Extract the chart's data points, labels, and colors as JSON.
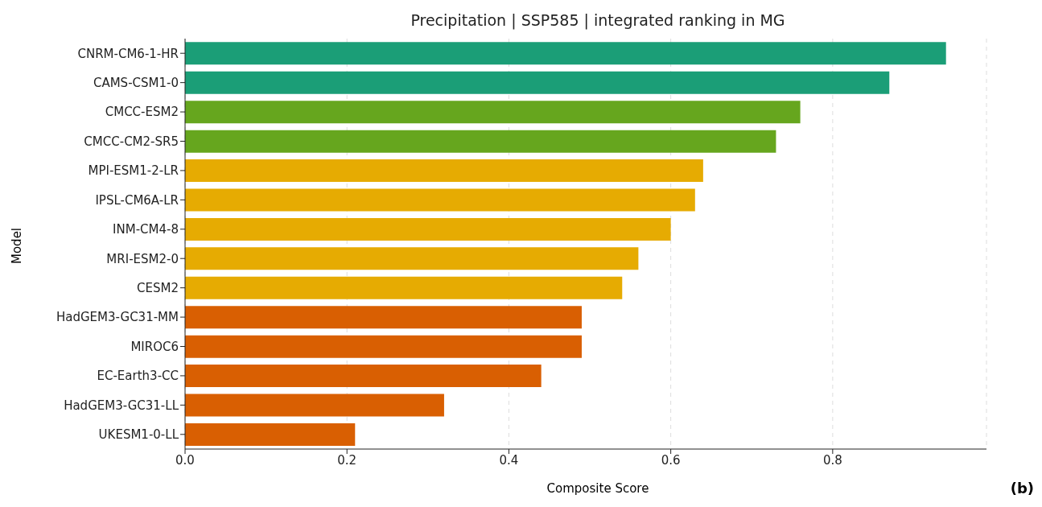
{
  "chart_data": {
    "type": "bar",
    "orientation": "horizontal",
    "title": "Precipitation | SSP585 | integrated ranking in MG",
    "xlabel": "Composite Score",
    "ylabel": "Model",
    "categories": [
      "CNRM-CM6-1-HR",
      "CAMS-CSM1-0",
      "CMCC-ESM2",
      "CMCC-CM2-SR5",
      "MPI-ESM1-2-LR",
      "IPSL-CM6A-LR",
      "INM-CM4-8",
      "MRI-ESM2-0",
      "CESM2",
      "HadGEM3-GC31-MM",
      "MIROC6",
      "EC-Earth3-CC",
      "HadGEM3-GC31-LL",
      "UKESM1-0-LL"
    ],
    "values": [
      0.94,
      0.87,
      0.76,
      0.73,
      0.64,
      0.63,
      0.6,
      0.56,
      0.54,
      0.49,
      0.49,
      0.44,
      0.32,
      0.21
    ],
    "colors": [
      "#1b9e77",
      "#1b9e77",
      "#66a61e",
      "#66a61e",
      "#e6ab02",
      "#e6ab02",
      "#e6ab02",
      "#e6ab02",
      "#e6ab02",
      "#d95f02",
      "#d95f02",
      "#d95f02",
      "#d95f02",
      "#d95f02"
    ],
    "xlim": [
      0,
      0.99
    ],
    "xticks": [
      {
        "value": 0,
        "label": "0.0"
      },
      0.2,
      0.4,
      0.6,
      0.8
    ],
    "grid": "x",
    "annotations": [
      "(b)"
    ]
  }
}
